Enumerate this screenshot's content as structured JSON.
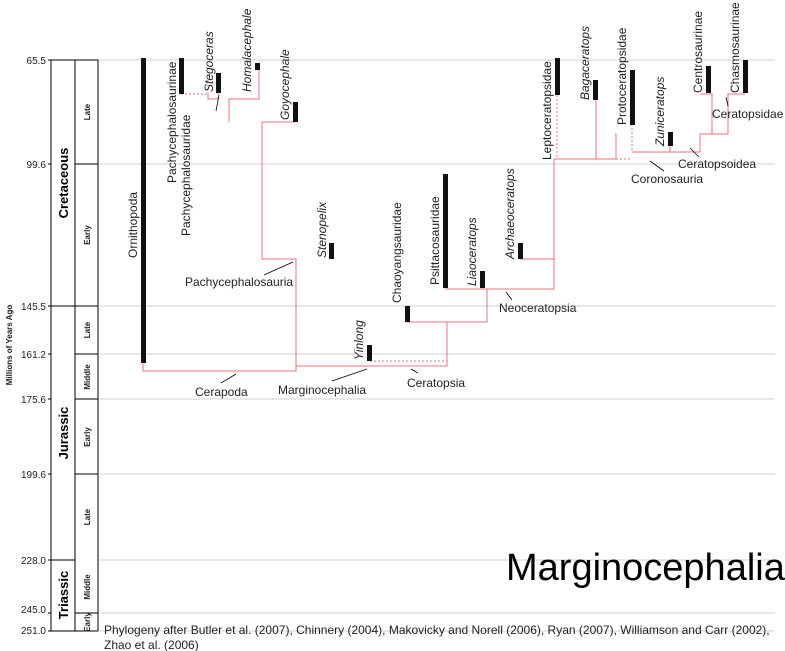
{
  "title": "Marginocephalia",
  "y_axis_label": "Millions of Years Ago",
  "ticks": [
    "65.5",
    "99.6",
    "145.5",
    "161.2",
    "175.6",
    "199.6",
    "228.0",
    "245.0",
    "251.0"
  ],
  "periods": [
    "Cretaceous",
    "Jurassic",
    "Triassic"
  ],
  "epochs": {
    "cretaceous_late": "Late",
    "cretaceous_early": "Early",
    "jurassic_late": "Late",
    "jurassic_middle": "Middle",
    "jurassic_early": "Early",
    "triassic_late": "Late",
    "triassic_middle": "Middle",
    "triassic_early": "Early"
  },
  "taxa": {
    "ornithopoda": "Ornithopoda",
    "pachycephalosaurinae": "Pachycephalosaurinae",
    "stegoceras": "Stegoceras",
    "homalacephale": "Homalacephale",
    "goyocephale": "Goyocephale",
    "stenopelix": "Stenopelix",
    "chaoyangsauridae": "Chaoyangsauridae",
    "psittacosauridae": "Psittacosauridae",
    "liaoceratops": "Liaoceratops",
    "archaeoceratops": "Archaeoceratops",
    "leptoceratopsidae": "Leptoceratopsidae",
    "bagaceratops": "Bagaceratops",
    "protoceratopsidae": "Protoceratopsidae",
    "zuniceratops": "Zuniceratops",
    "centrosaurinae": "Centrosaurinae",
    "chasmosaurinae": "Chasmosaurinae",
    "yinlong": "Yinlong"
  },
  "clades": {
    "pachycephalosauridae": "Pachycephalosauridae",
    "pachycephalosauria": "Pachycephalosauria",
    "cerapoda": "Cerapoda",
    "marginocephalia": "Marginocephalia",
    "ceratopsia": "Ceratopsia",
    "neoceratopsia": "Neoceratopsia",
    "coronosauria": "Coronosauria",
    "ceratopsoidea": "Ceratopsoidea",
    "ceratopsidae": "Ceratopsidae"
  },
  "credit_line1": "Phylogeny after Butler et al. (2007), Chinnery (2004), Makovicky and Norell (2006), Ryan (2007), Williamson and Carr (2002),",
  "credit_line2": "Zhao et al. (2006)",
  "colors": {
    "branch": "#e8737a",
    "bar": "#111111",
    "grid": "#cccccc"
  }
}
